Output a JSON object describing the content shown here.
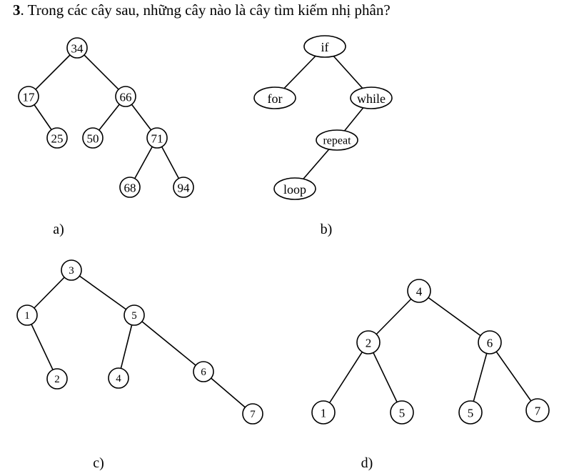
{
  "question": {
    "number": "3",
    "text": ". Trong các cây sau, những cây nào là cây tìm kiếm nhị phân?"
  },
  "trees": [
    {
      "caption": "a)",
      "nodes": [
        {
          "id": "a34",
          "label": "34"
        },
        {
          "id": "a17",
          "label": "17"
        },
        {
          "id": "a66",
          "label": "66"
        },
        {
          "id": "a25",
          "label": "25"
        },
        {
          "id": "a50",
          "label": "50"
        },
        {
          "id": "a71",
          "label": "71"
        },
        {
          "id": "a68",
          "label": "68"
        },
        {
          "id": "a94",
          "label": "94"
        }
      ],
      "edges": [
        [
          "a34",
          "a17"
        ],
        [
          "a34",
          "a66"
        ],
        [
          "a17",
          "a25"
        ],
        [
          "a66",
          "a50"
        ],
        [
          "a66",
          "a71"
        ],
        [
          "a71",
          "a68"
        ],
        [
          "a71",
          "a94"
        ]
      ]
    },
    {
      "caption": "b)",
      "nodes": [
        {
          "id": "bif",
          "label": "if"
        },
        {
          "id": "bfor",
          "label": "for"
        },
        {
          "id": "bwhile",
          "label": "while"
        },
        {
          "id": "brepeat",
          "label": "repeat"
        },
        {
          "id": "bloop",
          "label": "loop"
        }
      ],
      "edges": [
        [
          "bif",
          "bfor"
        ],
        [
          "bif",
          "bwhile"
        ],
        [
          "bwhile",
          "brepeat"
        ],
        [
          "brepeat",
          "bloop"
        ]
      ]
    },
    {
      "caption": "c)",
      "nodes": [
        {
          "id": "c3",
          "label": "3"
        },
        {
          "id": "c1",
          "label": "1"
        },
        {
          "id": "c5",
          "label": "5"
        },
        {
          "id": "c2",
          "label": "2"
        },
        {
          "id": "c4",
          "label": "4"
        },
        {
          "id": "c6",
          "label": "6"
        },
        {
          "id": "c7",
          "label": "7"
        }
      ],
      "edges": [
        [
          "c3",
          "c1"
        ],
        [
          "c3",
          "c5"
        ],
        [
          "c1",
          "c2"
        ],
        [
          "c5",
          "c4"
        ],
        [
          "c5",
          "c6"
        ],
        [
          "c6",
          "c7"
        ]
      ]
    },
    {
      "caption": "d)",
      "nodes": [
        {
          "id": "d4",
          "label": "4"
        },
        {
          "id": "d2",
          "label": "2"
        },
        {
          "id": "d6",
          "label": "6"
        },
        {
          "id": "d1",
          "label": "1"
        },
        {
          "id": "d5a",
          "label": "5"
        },
        {
          "id": "d5b",
          "label": "5"
        },
        {
          "id": "d7",
          "label": "7"
        }
      ],
      "edges": [
        [
          "d4",
          "d2"
        ],
        [
          "d4",
          "d6"
        ],
        [
          "d2",
          "d1"
        ],
        [
          "d2",
          "d5a"
        ],
        [
          "d6",
          "d5b"
        ],
        [
          "d6",
          "d7"
        ]
      ]
    }
  ]
}
